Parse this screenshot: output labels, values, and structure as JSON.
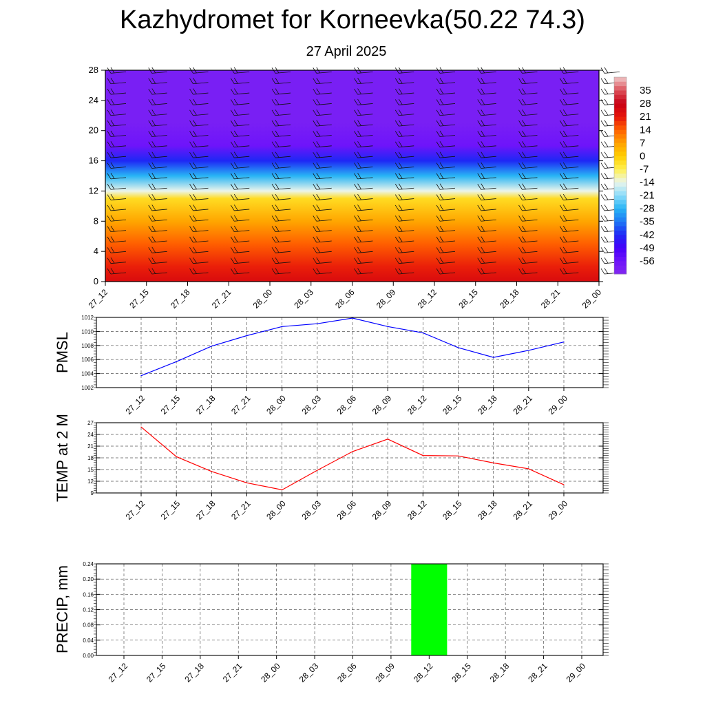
{
  "title": "Kazhydromet for Korneevka(50.22 74.3)",
  "subtitle": "27 April 2025",
  "time_labels": [
    "27_12",
    "27_15",
    "27_18",
    "27_21",
    "28_00",
    "28_03",
    "28_06",
    "28_09",
    "28_12",
    "28_15",
    "28_18",
    "28_21",
    "29_00"
  ],
  "chart_data": [
    {
      "type": "heatmap",
      "ylim": [
        0,
        28
      ],
      "yticks": [
        0,
        4,
        8,
        12,
        16,
        20,
        24,
        28
      ],
      "colorbar_labels": [
        "35",
        "28",
        "21",
        "14",
        "7",
        "0",
        "-7",
        "-14",
        "-21",
        "-28",
        "-35",
        "-42",
        "-49",
        "-56"
      ],
      "colorbar_range": [
        -63,
        42
      ],
      "temperature_profile": [
        {
          "height": 0,
          "value": 24
        },
        {
          "height": 2,
          "value": 20
        },
        {
          "height": 5,
          "value": 14
        },
        {
          "height": 8,
          "value": 6
        },
        {
          "height": 11,
          "value": -3
        },
        {
          "height": 12,
          "value": -14
        },
        {
          "height": 14,
          "value": -28
        },
        {
          "height": 16,
          "value": -42
        },
        {
          "height": 18,
          "value": -56
        },
        {
          "height": 21,
          "value": -60
        },
        {
          "height": 28,
          "value": -60
        }
      ],
      "grid": false
    },
    {
      "type": "line",
      "ylabel": "PMSL",
      "ylim": [
        1002,
        1012
      ],
      "yticks": [
        1002,
        1004,
        1006,
        1008,
        1010,
        1012
      ],
      "values": [
        1003.7,
        1005.7,
        1007.9,
        1009.4,
        1010.7,
        1011.1,
        1011.9,
        1010.7,
        1009.8,
        1007.7,
        1006.3,
        1007.3,
        1008.5
      ],
      "color": "#0000ff",
      "grid": true
    },
    {
      "type": "line",
      "ylabel": "TEMP at 2 M",
      "ylim": [
        9,
        27
      ],
      "yticks": [
        9,
        12,
        15,
        18,
        21,
        24,
        27
      ],
      "values": [
        25.9,
        18.3,
        14.5,
        11.6,
        9.8,
        14.8,
        19.6,
        22.8,
        18.6,
        18.5,
        16.7,
        15.2,
        11.1
      ],
      "color": "#ff0000",
      "grid": true
    },
    {
      "type": "bar",
      "ylabel": "PRECIP, mm",
      "ylim": [
        0,
        0.24
      ],
      "yticks": [
        "0.00",
        "0.04",
        "0.08",
        "0.12",
        "0.16",
        "0.20",
        "0.24"
      ],
      "values": [
        0,
        0,
        0,
        0,
        0,
        0,
        0,
        0,
        0.24,
        0,
        0,
        0,
        0
      ],
      "color": "#00ff00",
      "grid": true
    }
  ]
}
